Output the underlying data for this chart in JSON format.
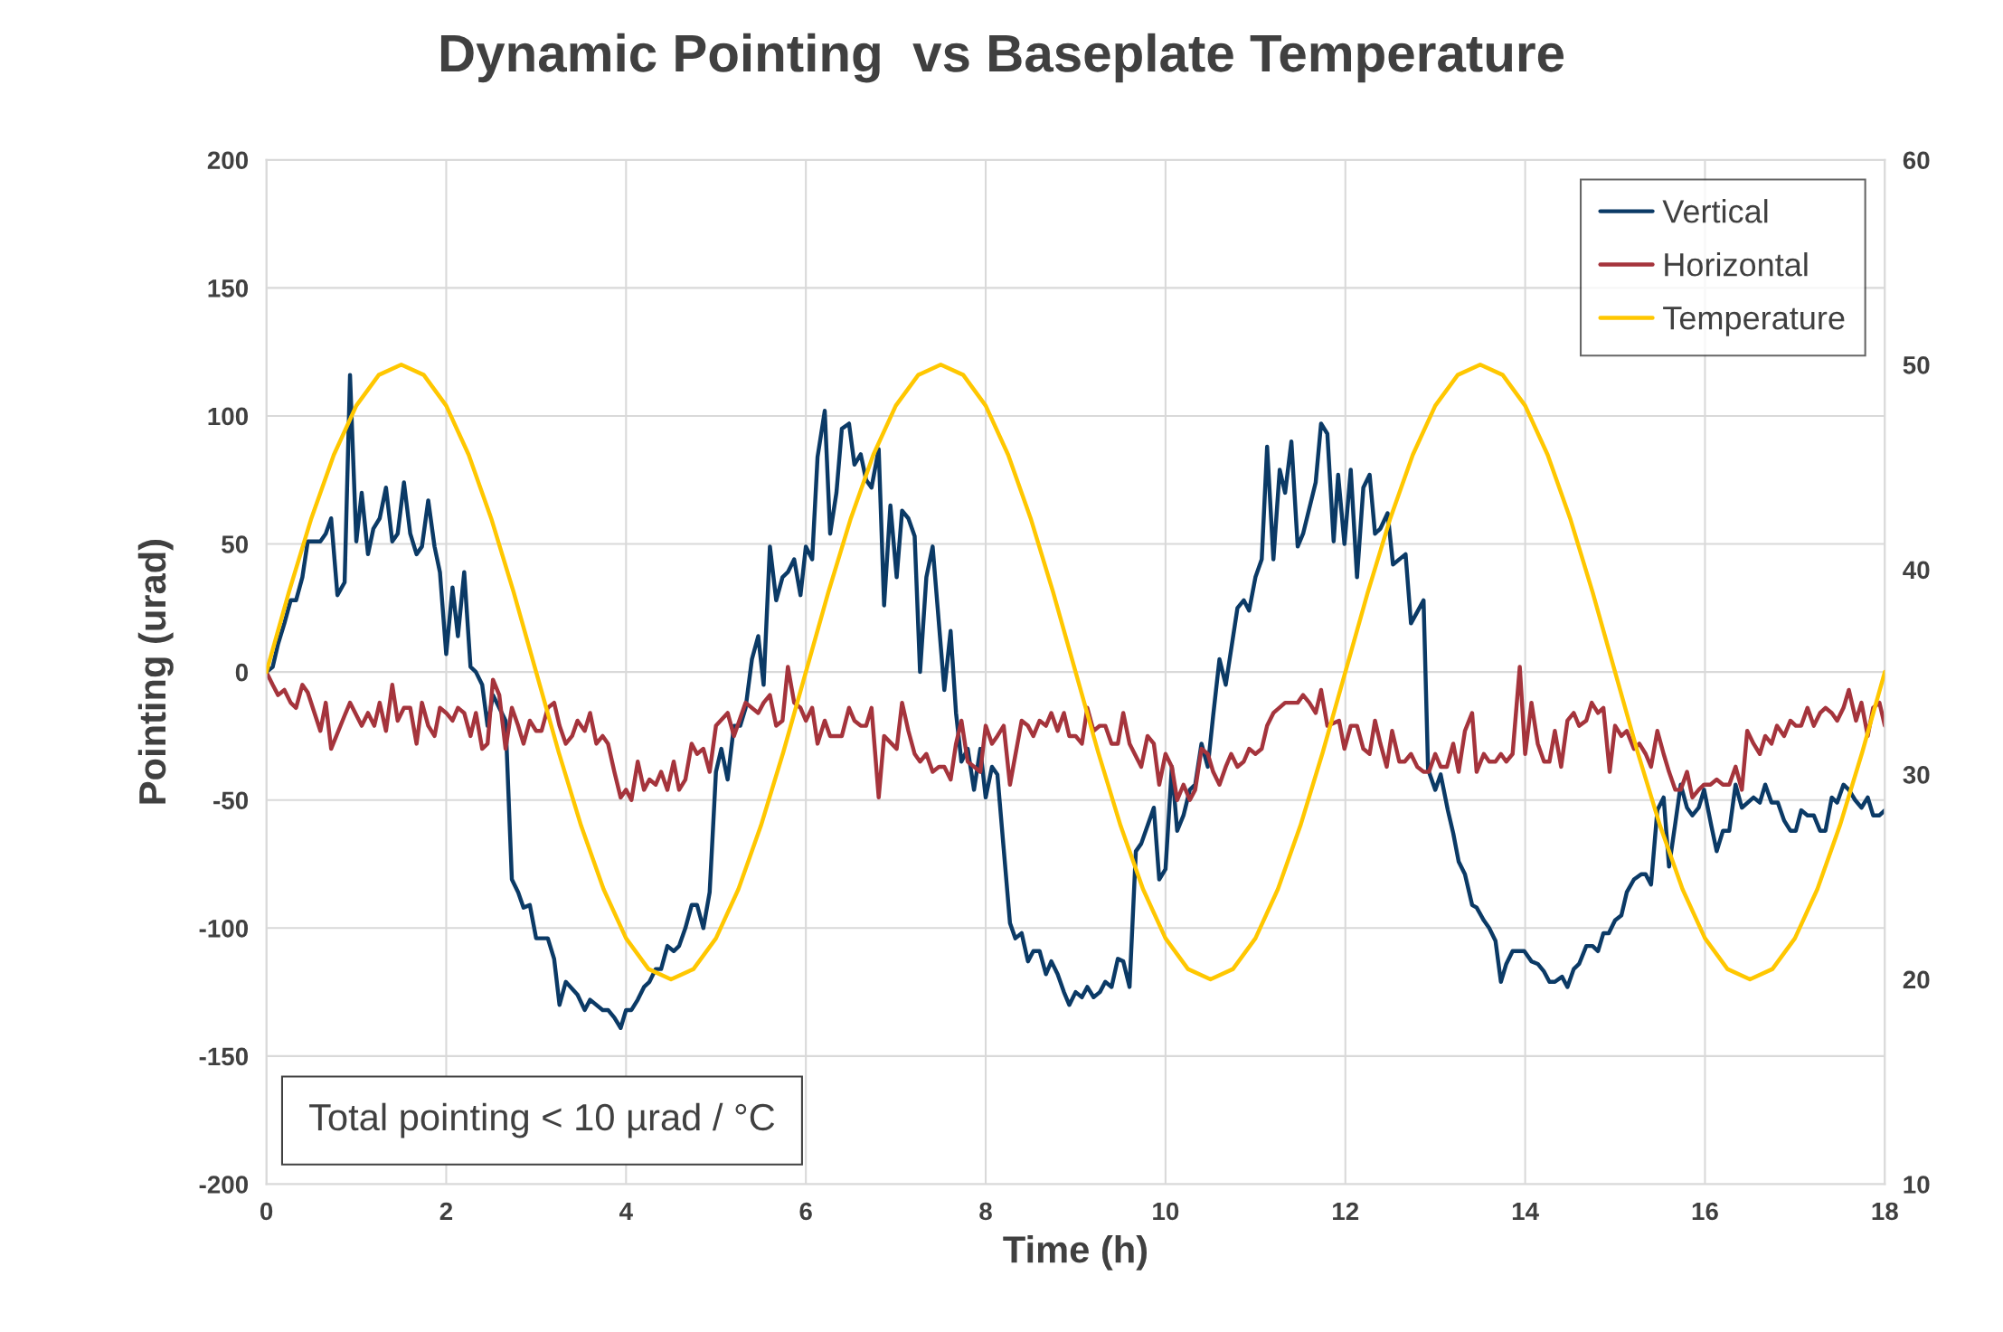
{
  "chart_data": {
    "type": "line",
    "title": "Dynamic Pointing  vs Baseplate Temperature",
    "xlabel": "Time (h)",
    "ylabel": "Pointing (urad)",
    "xlim": [
      0,
      18
    ],
    "xticks": [
      0,
      2,
      4,
      6,
      8,
      10,
      12,
      14,
      16,
      18
    ],
    "ylim": [
      -200,
      200
    ],
    "yticks": [
      -200,
      -150,
      -100,
      -50,
      0,
      50,
      100,
      150,
      200
    ],
    "y2lim": [
      10,
      60
    ],
    "y2ticks": [
      10,
      20,
      30,
      40,
      50,
      60
    ],
    "grid": true,
    "legend": "top right",
    "line_style": "solid",
    "marker": "none",
    "annotations": [
      "Total pointing < 10 µrad / °C"
    ],
    "series": [
      {
        "name": "Vertical",
        "color": "#0b3a66",
        "x": [
          0,
          0.07,
          0.13,
          0.2,
          0.27,
          0.33,
          0.4,
          0.46,
          0.6,
          0.66,
          0.72,
          0.79,
          0.87,
          0.93,
          1.0,
          1.06,
          1.13,
          1.19,
          1.26,
          1.33,
          1.4,
          1.46,
          1.53,
          1.6,
          1.67,
          1.73,
          1.8,
          1.87,
          1.93,
          2.0,
          2.07,
          2.13,
          2.2,
          2.27,
          2.33,
          2.4,
          2.46,
          2.52,
          2.59,
          2.66,
          2.73,
          2.8,
          2.86,
          2.93,
          3.0,
          3.13,
          3.2,
          3.26,
          3.33,
          3.46,
          3.54,
          3.6,
          3.74,
          3.8,
          3.87,
          3.94,
          4.0,
          4.06,
          4.13,
          4.2,
          4.26,
          4.33,
          4.39,
          4.46,
          4.53,
          4.59,
          4.66,
          4.73,
          4.79,
          4.86,
          4.93,
          5.0,
          5.06,
          5.13,
          5.2,
          5.27,
          5.33,
          5.4,
          5.47,
          5.53,
          5.6,
          5.67,
          5.74,
          5.8,
          5.87,
          5.94,
          6.0,
          6.07,
          6.13,
          6.21,
          6.27,
          6.34,
          6.4,
          6.48,
          6.54,
          6.61,
          6.67,
          6.73,
          6.81,
          6.87,
          6.94,
          7.01,
          7.07,
          7.14,
          7.21,
          7.27,
          7.34,
          7.41,
          7.54,
          7.61,
          7.67,
          7.73,
          7.8,
          7.87,
          7.94,
          8.0,
          8.07,
          8.13,
          8.2,
          8.27,
          8.33,
          8.4,
          8.47,
          8.53,
          8.6,
          8.67,
          8.73,
          8.8,
          8.87,
          8.93,
          9.0,
          9.07,
          9.13,
          9.2,
          9.27,
          9.33,
          9.4,
          9.47,
          9.53,
          9.6,
          9.67,
          9.73,
          9.87,
          9.93,
          10.0,
          10.07,
          10.13,
          10.2,
          10.27,
          10.33,
          10.4,
          10.47,
          10.53,
          10.6,
          10.67,
          10.8,
          10.87,
          10.93,
          11.0,
          11.07,
          11.13,
          11.2,
          11.27,
          11.33,
          11.4,
          11.47,
          11.53,
          11.67,
          11.73,
          11.8,
          11.87,
          11.92,
          11.99,
          12.06,
          12.13,
          12.2,
          12.27,
          12.33,
          12.39,
          12.47,
          12.53,
          12.67,
          12.73,
          12.87,
          12.92,
          13.0,
          13.06,
          13.14,
          13.2,
          13.26,
          13.33,
          13.41,
          13.46,
          13.54,
          13.6,
          13.67,
          13.73,
          13.79,
          13.86,
          13.99,
          14.07,
          14.14,
          14.21,
          14.27,
          14.33,
          14.41,
          14.47,
          14.54,
          14.6,
          14.68,
          14.75,
          14.81,
          14.87,
          14.93,
          15.0,
          15.07,
          15.13,
          15.21,
          15.29,
          15.34,
          15.4,
          15.47,
          15.54,
          15.6,
          15.67,
          15.73,
          15.8,
          15.86,
          15.93,
          15.99,
          16.07,
          16.13,
          16.2,
          16.27,
          16.34,
          16.41,
          16.54,
          16.61,
          16.67,
          16.74,
          16.81,
          16.88,
          16.95,
          17.01,
          17.07,
          17.14,
          17.21,
          17.28,
          17.34,
          17.41,
          17.47,
          17.54,
          17.6,
          17.67,
          17.74,
          17.81,
          17.87,
          17.94,
          18.0
        ],
        "values": [
          0,
          2,
          11,
          19,
          28,
          28,
          37,
          51,
          51,
          54,
          60,
          30,
          35,
          116,
          51,
          70,
          46,
          56,
          60,
          72,
          51,
          54,
          74,
          54,
          46,
          49,
          67,
          49,
          39,
          7,
          33,
          14,
          39,
          2,
          0,
          -5,
          -21,
          -9,
          -14,
          -19,
          -81,
          -86,
          -92,
          -91,
          -104,
          -104,
          -112,
          -130,
          -121,
          -126,
          -132,
          -128,
          -132,
          -132,
          -135,
          -139,
          -132,
          -132,
          -128,
          -123,
          -121,
          -116,
          -116,
          -107,
          -109,
          -107,
          -100,
          -91,
          -91,
          -100,
          -86,
          -39,
          -30,
          -42,
          -21,
          -21,
          -14,
          5,
          14,
          -5,
          49,
          28,
          37,
          39,
          44,
          30,
          49,
          44,
          84,
          102,
          54,
          70,
          95,
          97,
          81,
          85,
          75,
          72,
          87,
          26,
          65,
          37,
          63,
          60,
          53,
          0,
          37,
          49,
          -7,
          16,
          -16,
          -35,
          -30,
          -46,
          -30,
          -49,
          -37,
          -40,
          -69,
          -98,
          -104,
          -102,
          -113,
          -109,
          -109,
          -118,
          -113,
          -118,
          -125,
          -130,
          -125,
          -127,
          -123,
          -127,
          -125,
          -121,
          -123,
          -112,
          -113,
          -123,
          -70,
          -67,
          -53,
          -81,
          -77,
          -37,
          -62,
          -56,
          -46,
          -44,
          -28,
          -37,
          -17,
          5,
          -5,
          25,
          28,
          24,
          37,
          44,
          88,
          44,
          79,
          70,
          90,
          49,
          54,
          74,
          97,
          93,
          51,
          77,
          50,
          79,
          37,
          72,
          77,
          54,
          56,
          62,
          42,
          46,
          19,
          28,
          -38,
          -46,
          -40,
          -54,
          -63,
          -74,
          -79,
          -91,
          -92,
          -97,
          -100,
          -105,
          -121,
          -114,
          -109,
          -109,
          -113,
          -114,
          -117,
          -121,
          -121,
          -119,
          -123,
          -116,
          -114,
          -107,
          -107,
          -109,
          -102,
          -102,
          -97,
          -95,
          -86,
          -81,
          -79,
          -79,
          -83,
          -54,
          -49,
          -76,
          -59,
          -44,
          -53,
          -56,
          -53,
          -46,
          -60,
          -70,
          -62,
          -62,
          -44,
          -53,
          -49,
          -51,
          -44,
          -51,
          -51,
          -58,
          -62,
          -62,
          -54,
          -56,
          -56,
          -62,
          -62,
          -49,
          -51,
          -44,
          -46,
          -50,
          -53,
          -49,
          -56,
          -56,
          -54
        ]
      },
      {
        "name": "Horizontal",
        "color": "#a5343c",
        "x": [
          0,
          0.07,
          0.13,
          0.2,
          0.27,
          0.33,
          0.4,
          0.46,
          0.6,
          0.66,
          0.72,
          0.87,
          0.93,
          1.06,
          1.13,
          1.2,
          1.26,
          1.33,
          1.4,
          1.46,
          1.53,
          1.6,
          1.67,
          1.73,
          1.8,
          1.87,
          1.93,
          2.0,
          2.07,
          2.13,
          2.2,
          2.27,
          2.33,
          2.4,
          2.46,
          2.52,
          2.59,
          2.66,
          2.73,
          2.8,
          2.86,
          2.93,
          3.0,
          3.06,
          3.13,
          3.2,
          3.26,
          3.33,
          3.4,
          3.46,
          3.54,
          3.6,
          3.67,
          3.74,
          3.8,
          3.87,
          3.94,
          4.0,
          4.06,
          4.13,
          4.2,
          4.26,
          4.33,
          4.39,
          4.46,
          4.53,
          4.59,
          4.66,
          4.73,
          4.79,
          4.86,
          4.93,
          5.0,
          5.13,
          5.2,
          5.33,
          5.47,
          5.53,
          5.6,
          5.67,
          5.74,
          5.8,
          5.87,
          5.94,
          6.0,
          6.07,
          6.13,
          6.21,
          6.27,
          6.4,
          6.48,
          6.54,
          6.61,
          6.67,
          6.73,
          6.81,
          6.87,
          7.01,
          7.07,
          7.14,
          7.21,
          7.27,
          7.34,
          7.41,
          7.48,
          7.54,
          7.61,
          7.67,
          7.73,
          7.8,
          7.94,
          8.0,
          8.07,
          8.13,
          8.2,
          8.27,
          8.4,
          8.47,
          8.53,
          8.6,
          8.67,
          8.73,
          8.8,
          8.87,
          8.93,
          9.0,
          9.07,
          9.13,
          9.2,
          9.27,
          9.33,
          9.4,
          9.47,
          9.53,
          9.6,
          9.73,
          9.8,
          9.87,
          9.93,
          10.0,
          10.07,
          10.13,
          10.2,
          10.27,
          10.33,
          10.4,
          10.47,
          10.53,
          10.6,
          10.67,
          10.73,
          10.8,
          10.87,
          10.93,
          11.0,
          11.07,
          11.13,
          11.2,
          11.33,
          11.47,
          11.53,
          11.6,
          11.67,
          11.73,
          11.8,
          11.93,
          11.99,
          12.06,
          12.13,
          12.2,
          12.27,
          12.33,
          12.39,
          12.46,
          12.52,
          12.6,
          12.66,
          12.73,
          12.8,
          12.87,
          12.93,
          13.0,
          13.06,
          13.13,
          13.2,
          13.26,
          13.33,
          13.41,
          13.46,
          13.54,
          13.6,
          13.67,
          13.73,
          13.79,
          13.86,
          13.94,
          14.0,
          14.07,
          14.14,
          14.21,
          14.27,
          14.33,
          14.4,
          14.47,
          14.54,
          14.6,
          14.68,
          14.74,
          14.81,
          14.87,
          14.94,
          15.0,
          15.07,
          15.13,
          15.21,
          15.27,
          15.34,
          15.4,
          15.47,
          15.54,
          15.6,
          15.67,
          15.73,
          15.8,
          15.86,
          15.93,
          15.99,
          16.06,
          16.13,
          16.2,
          16.27,
          16.34,
          16.41,
          16.47,
          16.54,
          16.61,
          16.67,
          16.74,
          16.8,
          16.88,
          16.95,
          17.01,
          17.07,
          17.14,
          17.21,
          17.28,
          17.34,
          17.41,
          17.47,
          17.54,
          17.6,
          17.68,
          17.74,
          17.81,
          17.87,
          17.94,
          18.0
        ],
        "values": [
          0,
          -5,
          -9,
          -7,
          -12,
          -14,
          -5,
          -8,
          -23,
          -12,
          -30,
          -17,
          -12,
          -21,
          -16,
          -21,
          -12,
          -23,
          -5,
          -19,
          -14,
          -14,
          -28,
          -12,
          -21,
          -25,
          -14,
          -16,
          -19,
          -14,
          -16,
          -25,
          -16,
          -30,
          -28,
          -3,
          -9,
          -30,
          -14,
          -21,
          -28,
          -19,
          -23,
          -23,
          -14,
          -12,
          -21,
          -28,
          -25,
          -19,
          -23,
          -16,
          -28,
          -25,
          -28,
          -39,
          -49,
          -46,
          -50,
          -35,
          -46,
          -42,
          -44,
          -39,
          -46,
          -35,
          -46,
          -42,
          -28,
          -32,
          -30,
          -39,
          -21,
          -16,
          -25,
          -12,
          -16,
          -12,
          -9,
          -21,
          -19,
          2,
          -12,
          -14,
          -19,
          -14,
          -28,
          -19,
          -25,
          -25,
          -14,
          -19,
          -21,
          -21,
          -14,
          -49,
          -25,
          -30,
          -12,
          -23,
          -32,
          -35,
          -32,
          -39,
          -37,
          -37,
          -42,
          -28,
          -19,
          -35,
          -39,
          -21,
          -28,
          -25,
          -21,
          -44,
          -19,
          -21,
          -25,
          -19,
          -21,
          -16,
          -23,
          -16,
          -25,
          -25,
          -28,
          -14,
          -23,
          -21,
          -21,
          -28,
          -28,
          -16,
          -28,
          -37,
          -25,
          -28,
          -44,
          -32,
          -37,
          -50,
          -44,
          -50,
          -46,
          -30,
          -32,
          -39,
          -44,
          -37,
          -32,
          -37,
          -35,
          -30,
          -32,
          -30,
          -21,
          -16,
          -12,
          -12,
          -9,
          -12,
          -16,
          -7,
          -21,
          -19,
          -30,
          -21,
          -21,
          -30,
          -32,
          -19,
          -28,
          -37,
          -23,
          -35,
          -35,
          -32,
          -37,
          -39,
          -39,
          -32,
          -37,
          -37,
          -28,
          -39,
          -23,
          -16,
          -39,
          -32,
          -35,
          -35,
          -32,
          -35,
          -32,
          2,
          -32,
          -12,
          -28,
          -35,
          -35,
          -23,
          -37,
          -19,
          -16,
          -21,
          -19,
          -12,
          -16,
          -14,
          -39,
          -21,
          -25,
          -23,
          -30,
          -28,
          -32,
          -37,
          -23,
          -32,
          -39,
          -46,
          -46,
          -39,
          -49,
          -46,
          -44,
          -44,
          -42,
          -44,
          -44,
          -37,
          -46,
          -23,
          -28,
          -32,
          -25,
          -28,
          -21,
          -25,
          -19,
          -21,
          -21,
          -14,
          -21,
          -16,
          -14,
          -16,
          -19,
          -14,
          -7,
          -19,
          -12,
          -25,
          -14,
          -12,
          -21
        ]
      },
      {
        "name": "Temperature",
        "color": "#ffc700",
        "axis": "y2",
        "x": [
          0,
          0.25,
          0.5,
          0.75,
          1,
          1.25,
          1.5,
          1.75,
          2,
          2.25,
          2.5,
          2.75,
          3,
          3.25,
          3.5,
          3.75,
          4,
          4.25,
          4.5,
          4.75,
          5,
          5.25,
          5.5,
          5.75,
          6,
          6.25,
          6.5,
          6.75,
          7,
          7.25,
          7.5,
          7.75,
          8,
          8.25,
          8.5,
          8.75,
          9,
          9.25,
          9.5,
          9.75,
          10,
          10.25,
          10.5,
          10.75,
          11,
          11.25,
          11.5,
          11.75,
          12,
          12.25,
          12.5,
          12.75,
          13,
          13.25,
          13.5,
          13.75,
          14,
          14.25,
          14.5,
          14.75,
          15,
          15.25,
          15.5,
          15.75,
          16,
          16.25,
          16.5,
          16.75,
          17,
          17.25,
          17.5,
          17.75,
          18
        ],
        "values": [
          35,
          38.9,
          42.5,
          45.6,
          48,
          49.5,
          50,
          49.5,
          48,
          45.6,
          42.5,
          38.9,
          35,
          31.1,
          27.5,
          24.4,
          22,
          20.5,
          20,
          20.5,
          22,
          24.4,
          27.5,
          31.1,
          35,
          38.9,
          42.5,
          45.6,
          48,
          49.5,
          50,
          49.5,
          48,
          45.6,
          42.5,
          38.9,
          35,
          31.1,
          27.5,
          24.4,
          22,
          20.5,
          20,
          20.5,
          22,
          24.4,
          27.5,
          31.1,
          35,
          38.9,
          42.5,
          45.6,
          48,
          49.5,
          50,
          49.5,
          48,
          45.6,
          42.5,
          38.9,
          35,
          31.1,
          27.5,
          24.4,
          22,
          20.5,
          20,
          20.5,
          22,
          24.4,
          27.5,
          31.1,
          35
        ]
      }
    ]
  }
}
